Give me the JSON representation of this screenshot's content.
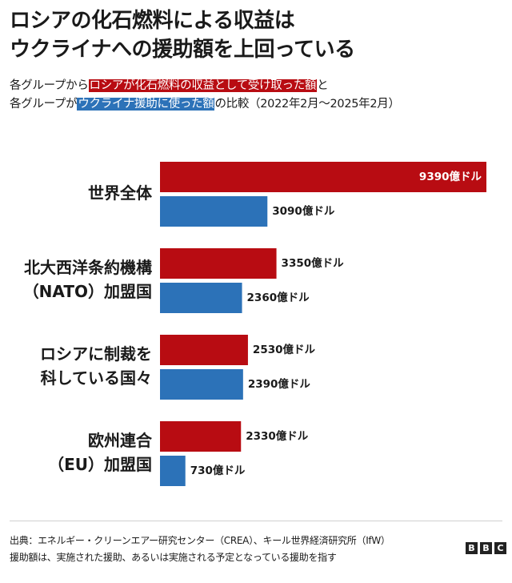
{
  "title": [
    "ロシアの化石燃料による収益は",
    "ウクライナへの援助額を上回っている"
  ],
  "subtitle": {
    "line1_pre": "各グループから",
    "line1_hl": "ロシアが化石燃料の収益として受け取った額",
    "line1_post": "と",
    "line2_pre": "各グループが",
    "line2_hl": "ウクライナ援助に使った額",
    "line2_post": "の比較（2022年2月～2025年2月）"
  },
  "colors": {
    "russia": "#b80c12",
    "ukraine": "#2c72b8"
  },
  "chart_data": {
    "type": "bar",
    "orientation": "horizontal",
    "categories": [
      [
        "世界全体"
      ],
      [
        "北大西洋条約機構",
        "（NATO）加盟国"
      ],
      [
        "ロシアに制裁を",
        "科している国々"
      ],
      [
        "欧州連合",
        "（EU）加盟国"
      ]
    ],
    "series": [
      {
        "values": [
          9390,
          3350,
          2530,
          2330
        ],
        "labels": [
          "9390億ドル",
          "3350億ドル",
          "2530億ドル",
          "2330億ドル"
        ]
      },
      {
        "values": [
          3090,
          2360,
          2390,
          730
        ],
        "labels": [
          "3090億ドル",
          "2360億ドル",
          "2390億ドル",
          "730億ドル"
        ]
      }
    ],
    "xlim": [
      0,
      9390
    ],
    "grid": false,
    "legend": "none"
  },
  "footer": {
    "source": "出典：エネルギー・クリーンエアー研究センター（CREA）、キール世界経済研究所（IfW）",
    "note": "援助額は、実施された援助、あるいは実施される予定となっている援助を指す"
  },
  "logo": [
    "B",
    "B",
    "C"
  ]
}
